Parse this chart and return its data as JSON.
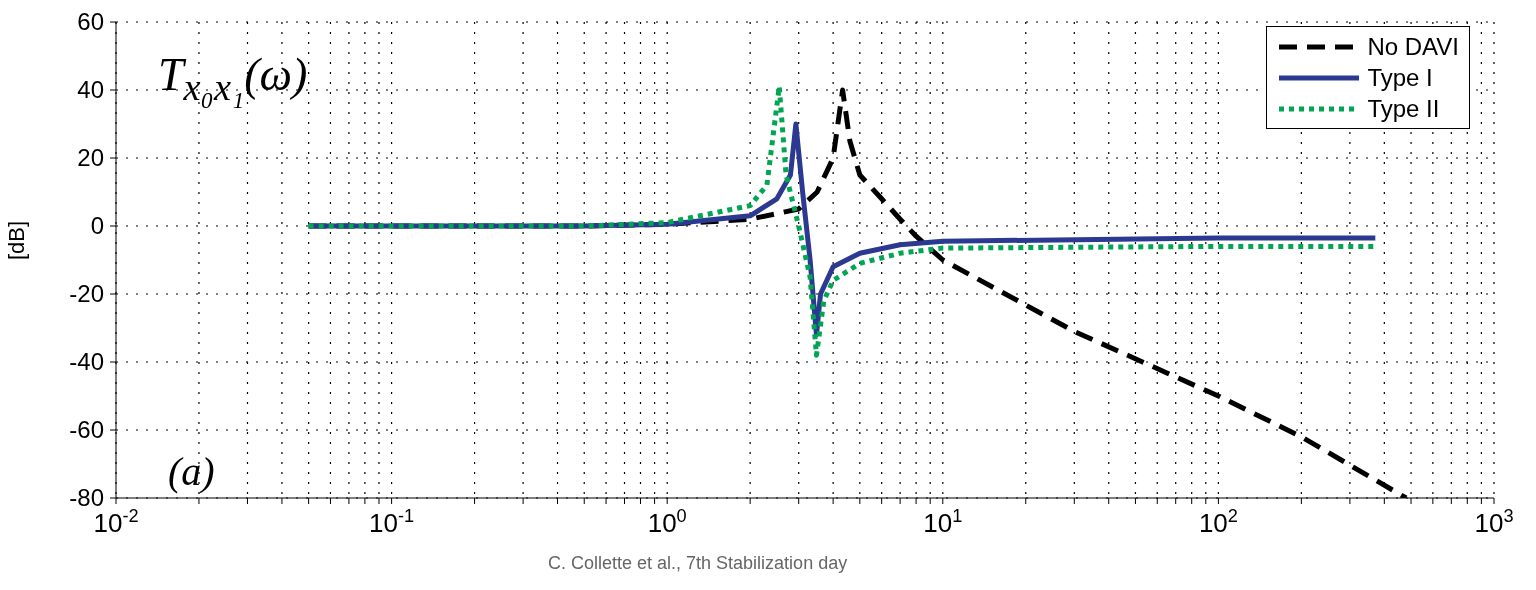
{
  "chart_data": {
    "type": "line",
    "ylabel": "[dB]",
    "annotations": [
      "T$_{x₀x₁}$(ω)",
      "(a)",
      "C. Collette et al., 7th Stabilization day"
    ],
    "log": "x",
    "grid": true,
    "legend": "top right",
    "xlim": [
      0.01,
      1000
    ],
    "ylim": [
      -80,
      60
    ],
    "xticks": [
      {
        "value": 0.01,
        "label": "10$^{-2}$"
      },
      {
        "value": 0.02,
        "label": null
      },
      {
        "value": 0.03,
        "label": null
      },
      {
        "value": 0.04,
        "label": null
      },
      {
        "value": 0.05,
        "label": null
      },
      {
        "value": 0.06,
        "label": null
      },
      {
        "value": 0.07,
        "label": null
      },
      {
        "value": 0.08,
        "label": null
      },
      {
        "value": 0.09,
        "label": null
      },
      {
        "value": 0.1,
        "label": "10$^{-1}$"
      },
      {
        "value": 0.2,
        "label": null
      },
      {
        "value": 0.3,
        "label": null
      },
      {
        "value": 0.4,
        "label": null
      },
      {
        "value": 0.5,
        "label": null
      },
      {
        "value": 0.6,
        "label": null
      },
      {
        "value": 0.7,
        "label": null
      },
      {
        "value": 0.8,
        "label": null
      },
      {
        "value": 0.9,
        "label": null
      },
      {
        "value": 1,
        "label": "10$^{0}$"
      },
      {
        "value": 2,
        "label": null
      },
      {
        "value": 3,
        "label": null
      },
      {
        "value": 4,
        "label": null
      },
      {
        "value": 5,
        "label": null
      },
      {
        "value": 6,
        "label": null
      },
      {
        "value": 7,
        "label": null
      },
      {
        "value": 8,
        "label": null
      },
      {
        "value": 9,
        "label": null
      },
      {
        "value": 10,
        "label": "10$^{1}$"
      },
      {
        "value": 20,
        "label": null
      },
      {
        "value": 30,
        "label": null
      },
      {
        "value": 40,
        "label": null
      },
      {
        "value": 50,
        "label": null
      },
      {
        "value": 60,
        "label": null
      },
      {
        "value": 70,
        "label": null
      },
      {
        "value": 80,
        "label": null
      },
      {
        "value": 90,
        "label": null
      },
      {
        "value": 100,
        "label": "10$^{2}$"
      },
      {
        "value": 200,
        "label": null
      },
      {
        "value": 300,
        "label": null
      },
      {
        "value": 400,
        "label": null
      },
      {
        "value": 500,
        "label": null
      },
      {
        "value": 600,
        "label": null
      },
      {
        "value": 700,
        "label": null
      },
      {
        "value": 800,
        "label": null
      },
      {
        "value": 900,
        "label": null
      },
      {
        "value": 1000,
        "label": "10$^{3}$"
      }
    ],
    "yticks": [
      -80,
      -60,
      -40,
      -20,
      0,
      20,
      40,
      60
    ],
    "series": [
      {
        "name": "No DAVI",
        "color": "#000000",
        "line_style": "dashed",
        "x": [
          0.05,
          0.5,
          1,
          2,
          3,
          3.5,
          4,
          4.33,
          4.6,
          5,
          6,
          7,
          8,
          10,
          30,
          100,
          200,
          480
        ],
        "values": [
          0,
          0,
          0.5,
          2,
          5,
          10,
          20,
          40,
          25,
          15,
          8,
          2,
          -3,
          -10,
          -31,
          -50,
          -62,
          -80
        ]
      },
      {
        "name": "Type I",
        "color": "#2b3990",
        "line_style": "solid",
        "x": [
          0.05,
          0.5,
          1,
          2,
          2.5,
          2.8,
          2.93,
          3.1,
          3.3,
          3.48,
          3.6,
          4,
          5,
          7,
          10,
          100,
          371
        ],
        "values": [
          0,
          0,
          0.5,
          3,
          8,
          15,
          30,
          10,
          -10,
          -32,
          -20,
          -12,
          -8,
          -5.5,
          -4.5,
          -3.5,
          -3.5
        ]
      },
      {
        "name": "Type II",
        "color": "#00a651",
        "line_style": "dotted",
        "x": [
          0.05,
          0.5,
          1,
          2,
          2.3,
          2.55,
          2.7,
          3,
          3.3,
          3.48,
          3.7,
          4,
          5,
          7,
          10,
          100,
          371
        ],
        "values": [
          0,
          0,
          1,
          6,
          12,
          41,
          15,
          0,
          -15,
          -38,
          -22,
          -16,
          -11,
          -8,
          -6.5,
          -6,
          -6
        ]
      }
    ]
  }
}
